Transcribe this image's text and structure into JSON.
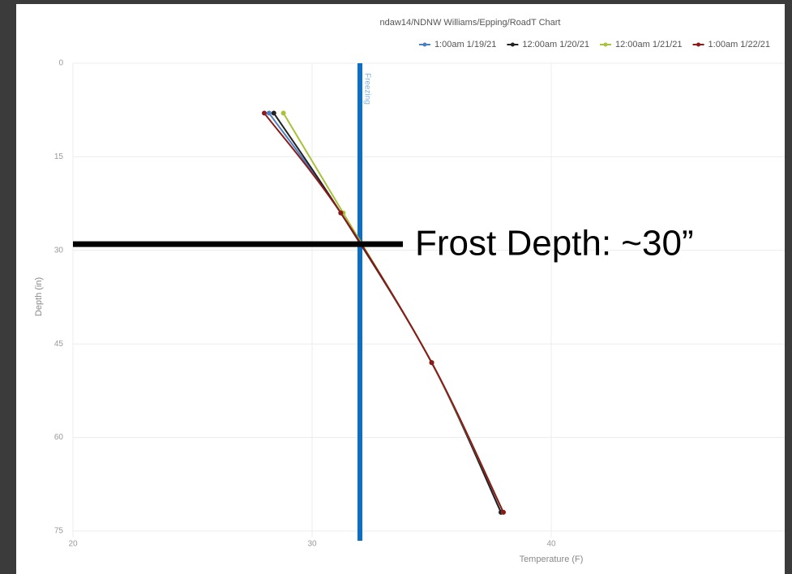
{
  "chart_data": {
    "type": "line",
    "orientation": "depth-profile",
    "title": "ndaw14/NDNW Williams/Epping/RoadT Chart",
    "x_label": "Temperature (F)",
    "y_label": "Depth (in)",
    "depths": [
      8,
      24,
      48,
      72
    ],
    "series": [
      {
        "name": "1:00am 1/19/21",
        "color": "#4a7fc1",
        "values": [
          28.2,
          31.2,
          35.0,
          37.9
        ]
      },
      {
        "name": "12:00am 1/20/21",
        "color": "#222222",
        "values": [
          28.4,
          31.2,
          35.0,
          37.9
        ]
      },
      {
        "name": "12:00am 1/21/21",
        "color": "#a8c23a",
        "values": [
          28.8,
          31.3,
          35.0,
          38.0
        ]
      },
      {
        "name": "1:00am 1/22/21",
        "color": "#8b1a1a",
        "values": [
          28.0,
          31.2,
          35.0,
          38.0
        ]
      }
    ],
    "xlim": [
      20,
      50
    ],
    "xticks": [
      20,
      30,
      40
    ],
    "ylim": [
      0,
      75
    ],
    "yticks": [
      0,
      15,
      30,
      45,
      60,
      75
    ],
    "y_inverted": true,
    "grid": true,
    "reference_line": {
      "value": 32,
      "label": "Freezing",
      "color": "#0a6fc7"
    },
    "annotation": {
      "text": "Frost Depth: ~30”",
      "depth": 29
    }
  }
}
